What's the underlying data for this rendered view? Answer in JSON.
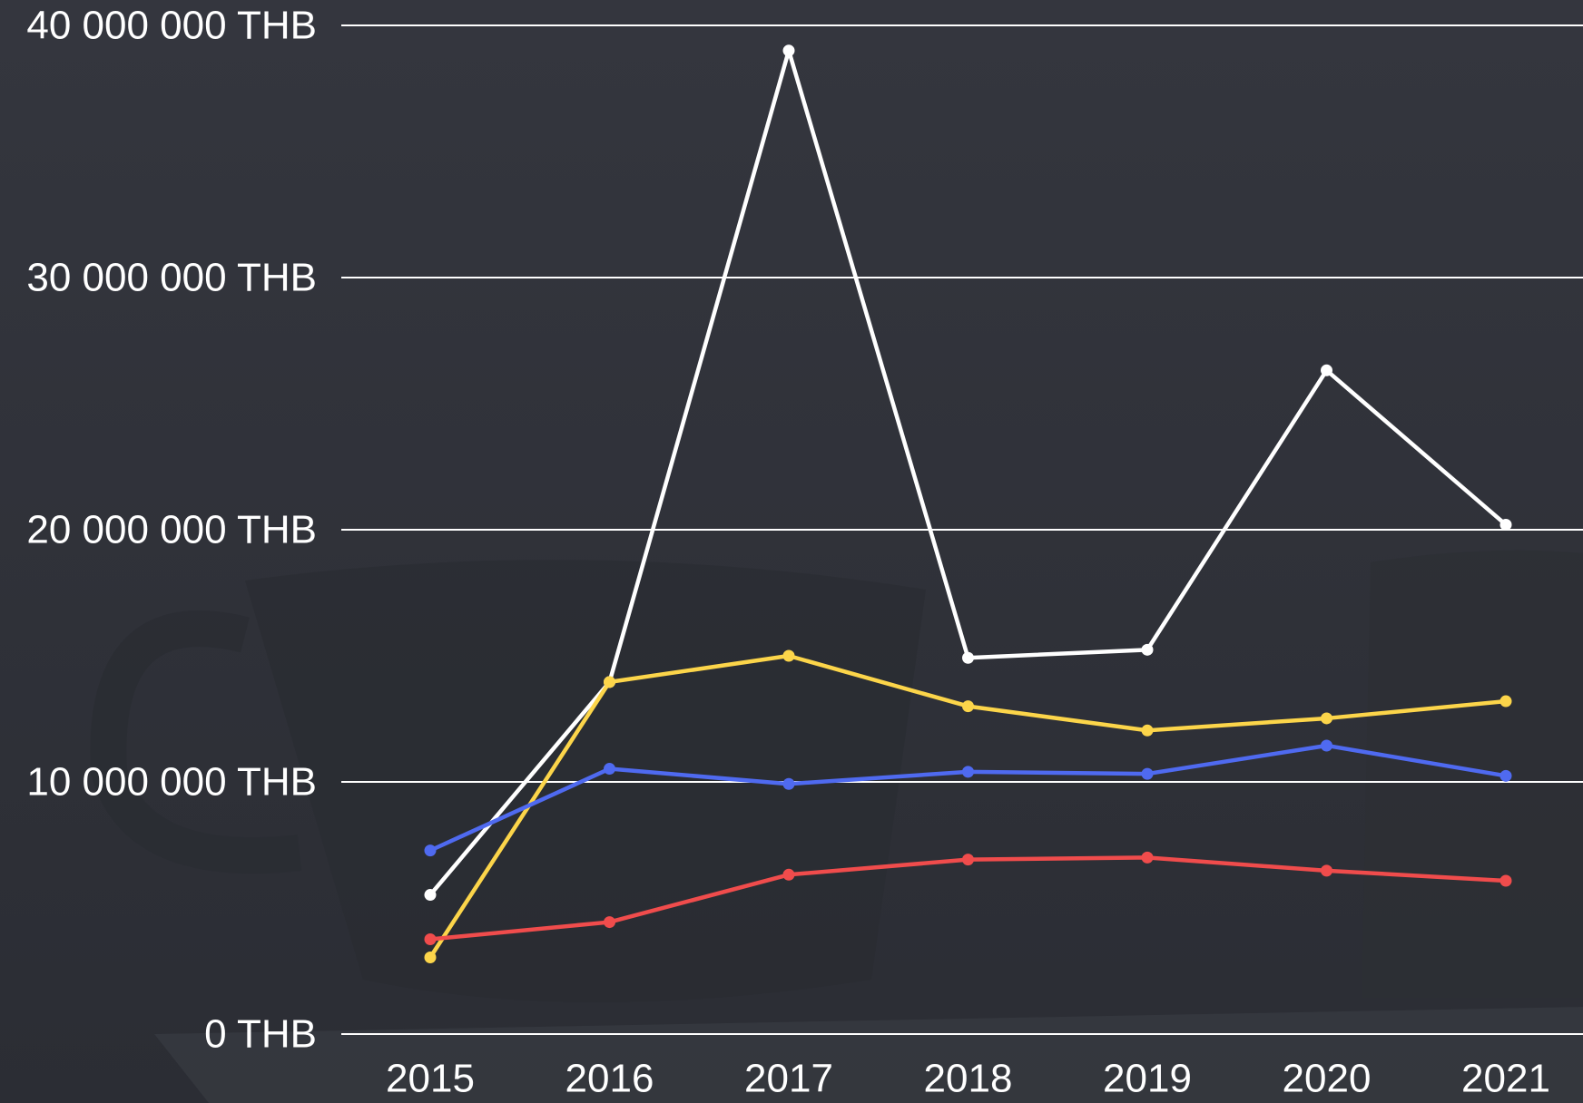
{
  "chart_data": {
    "type": "line",
    "x": [
      "2015",
      "2016",
      "2017",
      "2018",
      "2019",
      "2020",
      "2021"
    ],
    "series": [
      {
        "color": "#ffffff",
        "values": [
          5520000,
          13960000,
          39000000,
          14920000,
          15240000,
          26320000,
          20200000
        ]
      },
      {
        "color": "#fcd54a",
        "values": [
          3040000,
          13960000,
          15000000,
          13000000,
          12040000,
          12520000,
          13200000
        ]
      },
      {
        "color": "#4f6af0",
        "values": [
          7280000,
          10520000,
          9920000,
          10400000,
          10320000,
          11440000,
          10240000
        ]
      },
      {
        "color": "#f04c4c",
        "values": [
          3760000,
          4440000,
          6320000,
          6920000,
          7000000,
          6480000,
          6080000
        ]
      }
    ],
    "ylim": [
      0,
      40000000
    ],
    "yticks": [
      {
        "value": 0,
        "label": "0 THB"
      },
      {
        "value": 10000000,
        "label": "10 000 000 THB"
      },
      {
        "value": 20000000,
        "label": "20 000 000 THB"
      },
      {
        "value": 30000000,
        "label": "30 000 000 THB"
      },
      {
        "value": 40000000,
        "label": "40 000 000 THB"
      }
    ],
    "grid": true
  }
}
